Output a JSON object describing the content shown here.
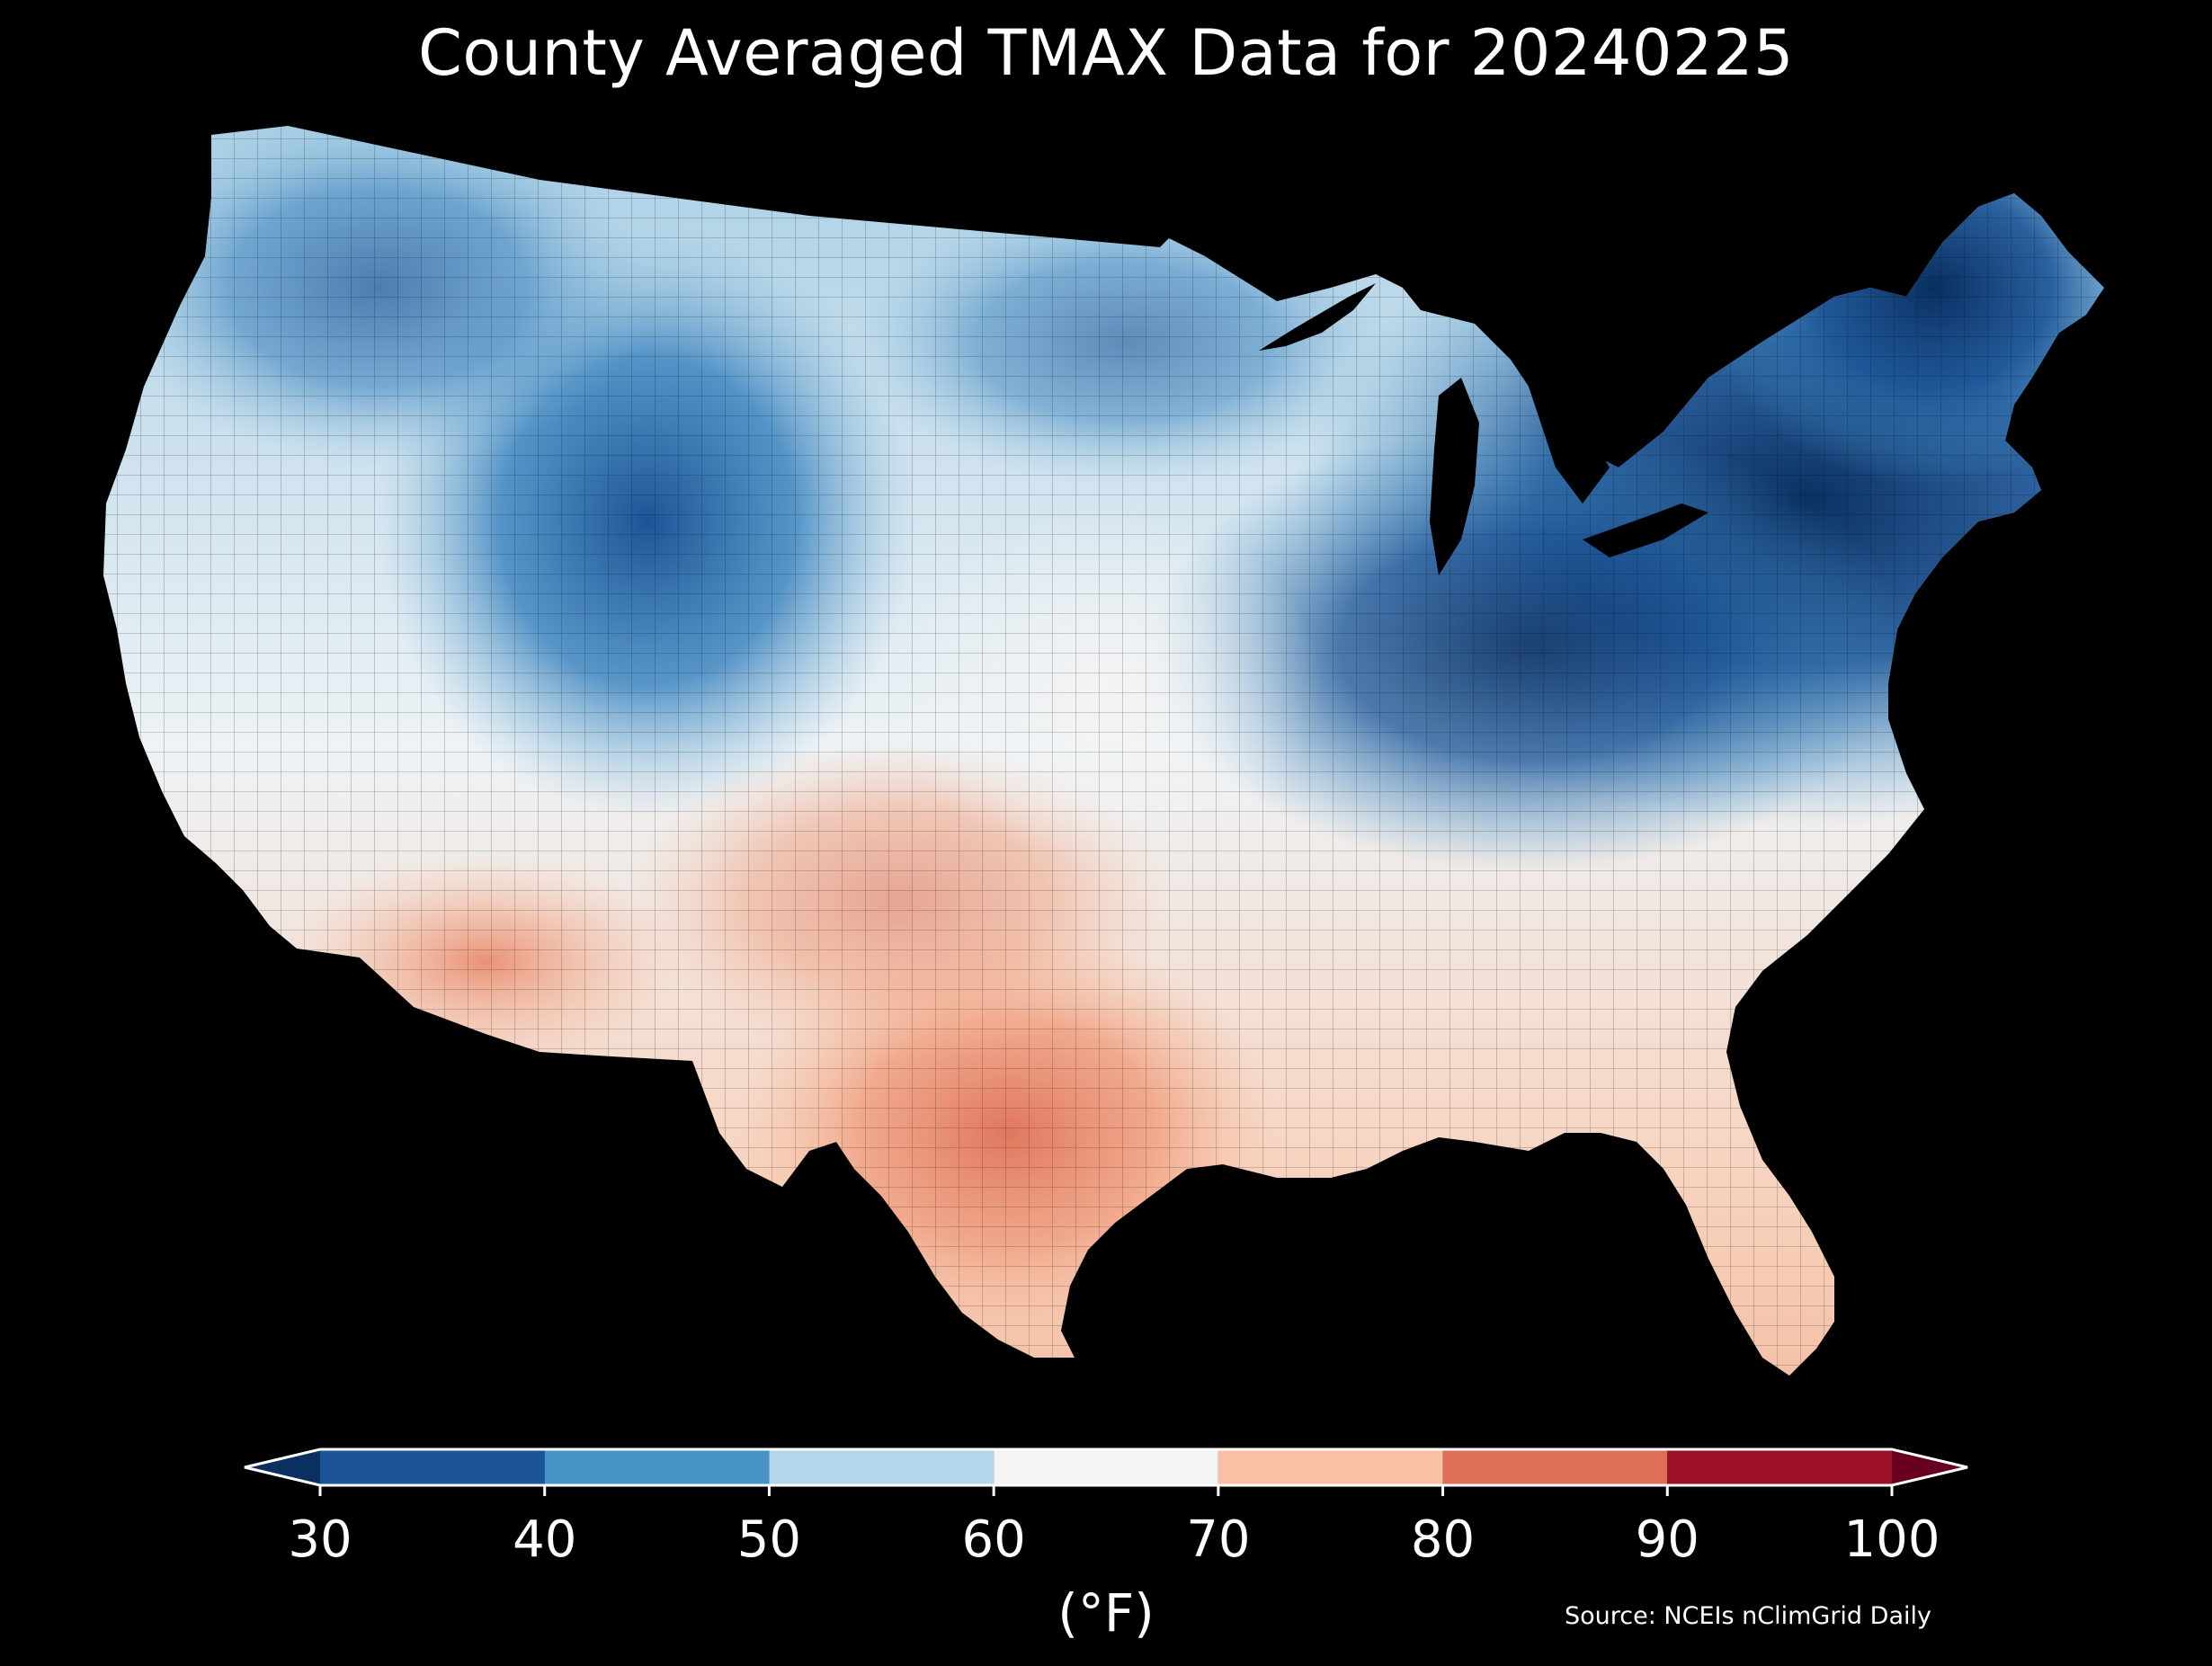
{
  "title": "County Averaged TMAX Data for 20240225",
  "colorbar": {
    "ticks": [
      "30",
      "40",
      "50",
      "60",
      "70",
      "80",
      "90",
      "100"
    ],
    "unit": "(°F)",
    "bins": [
      {
        "min": 30,
        "max": 40,
        "color": "#1c5597"
      },
      {
        "min": 40,
        "max": 50,
        "color": "#4694c7"
      },
      {
        "min": 50,
        "max": 60,
        "color": "#b5d6ea"
      },
      {
        "min": 60,
        "max": 70,
        "color": "#f4f4f4"
      },
      {
        "min": 70,
        "max": 80,
        "color": "#f8c1a5"
      },
      {
        "min": 80,
        "max": 90,
        "color": "#de6e58"
      },
      {
        "min": 90,
        "max": 100,
        "color": "#9b1027"
      }
    ],
    "under_color": "#0a2f61",
    "over_color": "#67001f"
  },
  "source": "Source: NCEIs nClimGrid Daily",
  "map": {
    "background": "#000000",
    "region_temperatures_f": {
      "northern-rockies": 38,
      "colorado-mountains": 35,
      "great-lakes-northeast": 28,
      "maine": 25,
      "pacific-northwest": 52,
      "great-plains-north": 55,
      "central-plains": 62,
      "ohio-valley": 42,
      "appalachians": 48,
      "southeast": 68,
      "florida": 74,
      "california-coast": 66,
      "desert-southwest": 78,
      "south-texas": 86,
      "texas-oklahoma": 77
    }
  }
}
